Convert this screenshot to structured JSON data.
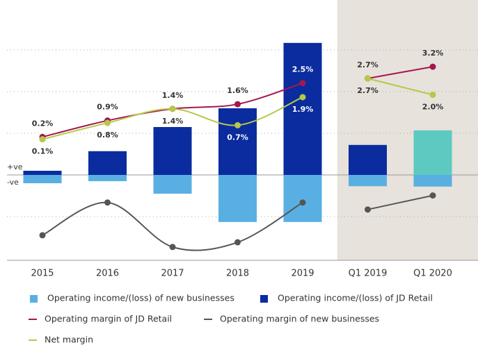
{
  "chart_data": {
    "type": "bar_line",
    "categories": [
      "2015",
      "2016",
      "2017",
      "2018",
      "2019",
      "Q1 2019",
      "Q1 2020"
    ],
    "ylim": [
      -2.05,
      4.2
    ],
    "yticks": [
      -1,
      0,
      1,
      2,
      3
    ],
    "grid": true,
    "y2lim": [
      -5.07,
      6.05
    ],
    "zero_labels": [
      "+ve",
      "-ve"
    ],
    "highlight": {
      "from": "Q1 2019",
      "to": "Q1 2020",
      "color": "#e7e2db"
    },
    "series": [
      {
        "name": "Operating income/(loss) of new businesses",
        "type": "bar",
        "color": "#5aafe2",
        "values": [
          -0.2,
          -0.15,
          -0.45,
          -1.13,
          -1.13,
          -0.27,
          -0.28
        ]
      },
      {
        "name": "Operating income/(loss) of JD Retail",
        "type": "bar",
        "color": "#0a2c9e",
        "colors": [
          "#0a2c9e",
          "#0a2c9e",
          "#0a2c9e",
          "#0a2c9e",
          "#0a2c9e",
          "#0a2c9e",
          "#5ec9c0"
        ],
        "values": [
          0.1,
          0.57,
          1.15,
          1.6,
          3.17,
          0.72,
          1.07
        ]
      },
      {
        "name": "Operating margin of JD Retail",
        "type": "line",
        "axis": "y2",
        "color": "#a3184f",
        "label_side": "above",
        "values": [
          0.2,
          0.9,
          1.4,
          1.6,
          2.5,
          2.7,
          3.2
        ],
        "value_labels": [
          "0.2%",
          "0.9%",
          "1.4%",
          "1.6%",
          "2.5%",
          "2.7%",
          "3.2%"
        ]
      },
      {
        "name": "Operating margin of new businesses",
        "type": "line",
        "axis": "y2",
        "color": "#555555",
        "values": [
          -4.0,
          -2.6,
          -4.5,
          -4.3,
          -2.6,
          -2.9,
          -2.3
        ]
      },
      {
        "name": "Net margin",
        "type": "line",
        "axis": "y2",
        "color": "#b5c847",
        "label_side": "below",
        "values": [
          0.1,
          0.8,
          1.4,
          0.7,
          1.9,
          2.7,
          2.0
        ],
        "value_labels": [
          "0.1%",
          "0.8%",
          "1.4%",
          "0.7%",
          "1.9%",
          "2.7%",
          "2.0%"
        ]
      }
    ]
  }
}
